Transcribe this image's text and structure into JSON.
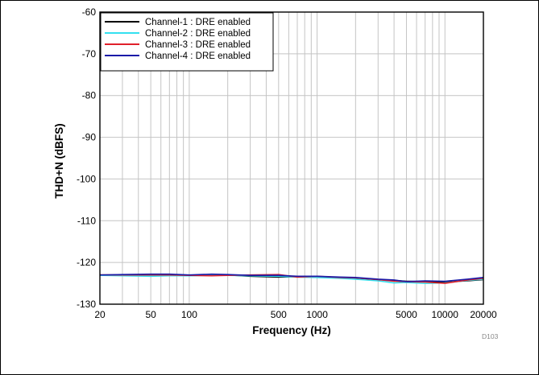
{
  "chart_data": {
    "type": "line",
    "xlabel": "Frequency (Hz)",
    "ylabel": "THD+N (dBFS)",
    "x_scale": "log",
    "xlim": [
      20,
      20000
    ],
    "ylim": [
      -130,
      -60
    ],
    "x_ticks": [
      20,
      50,
      100,
      500,
      1000,
      5000,
      10000,
      20000
    ],
    "x_tick_labels": [
      "20",
      "50",
      "100",
      "500",
      "1000",
      "5000",
      "10000",
      "20000"
    ],
    "y_ticks": [
      -60,
      -70,
      -80,
      -90,
      -100,
      -110,
      -120,
      -130
    ],
    "y_tick_labels": [
      "-60",
      "-70",
      "-80",
      "-90",
      "-100",
      "-110",
      "-120",
      "-130"
    ],
    "grid": true,
    "legend_position": "top-left",
    "figure_id": "D103",
    "series": [
      {
        "name": "Channel-1 : DRE enabled",
        "color": "#000000",
        "x": [
          20,
          30,
          50,
          70,
          100,
          150,
          200,
          300,
          500,
          700,
          1000,
          1500,
          2000,
          3000,
          4000,
          5000,
          7000,
          10000,
          15000,
          20000
        ],
        "y": [
          -123.0,
          -123.0,
          -123.2,
          -123.1,
          -123.1,
          -123.0,
          -123.0,
          -123.3,
          -123.5,
          -123.4,
          -123.4,
          -123.7,
          -123.8,
          -124.1,
          -124.3,
          -124.5,
          -124.6,
          -124.7,
          -124.4,
          -124.1
        ]
      },
      {
        "name": "Channel-2 : DRE enabled",
        "color": "#33e0f0",
        "x": [
          20,
          30,
          50,
          70,
          100,
          150,
          200,
          300,
          500,
          700,
          1000,
          1500,
          2000,
          3000,
          4000,
          5000,
          7000,
          10000,
          15000,
          20000
        ],
        "y": [
          -123.1,
          -123.2,
          -123.3,
          -123.2,
          -123.2,
          -123.1,
          -123.1,
          -123.2,
          -123.3,
          -123.5,
          -123.6,
          -123.8,
          -124.0,
          -124.4,
          -124.9,
          -124.8,
          -125.0,
          -124.9,
          -124.3,
          -124.0
        ]
      },
      {
        "name": "Channel-3 : DRE enabled",
        "color": "#e0202a",
        "x": [
          20,
          30,
          50,
          70,
          100,
          150,
          200,
          300,
          500,
          700,
          1000,
          1500,
          2000,
          3000,
          4000,
          5000,
          7000,
          10000,
          15000,
          20000
        ],
        "y": [
          -123.0,
          -123.0,
          -123.0,
          -123.0,
          -123.1,
          -123.2,
          -123.1,
          -123.0,
          -122.9,
          -123.5,
          -123.3,
          -123.6,
          -123.7,
          -124.1,
          -124.5,
          -124.6,
          -124.7,
          -125.0,
          -124.2,
          -123.8
        ]
      },
      {
        "name": "Channel-4 : DRE enabled",
        "color": "#1a1aa8",
        "x": [
          20,
          30,
          50,
          70,
          100,
          150,
          200,
          300,
          500,
          700,
          1000,
          1500,
          2000,
          3000,
          4000,
          5000,
          7000,
          10000,
          15000,
          20000
        ],
        "y": [
          -123.0,
          -122.9,
          -122.8,
          -122.8,
          -123.0,
          -122.8,
          -122.9,
          -123.1,
          -123.1,
          -123.3,
          -123.3,
          -123.5,
          -123.6,
          -124.0,
          -124.2,
          -124.6,
          -124.4,
          -124.5,
          -124.0,
          -123.6
        ]
      }
    ]
  }
}
